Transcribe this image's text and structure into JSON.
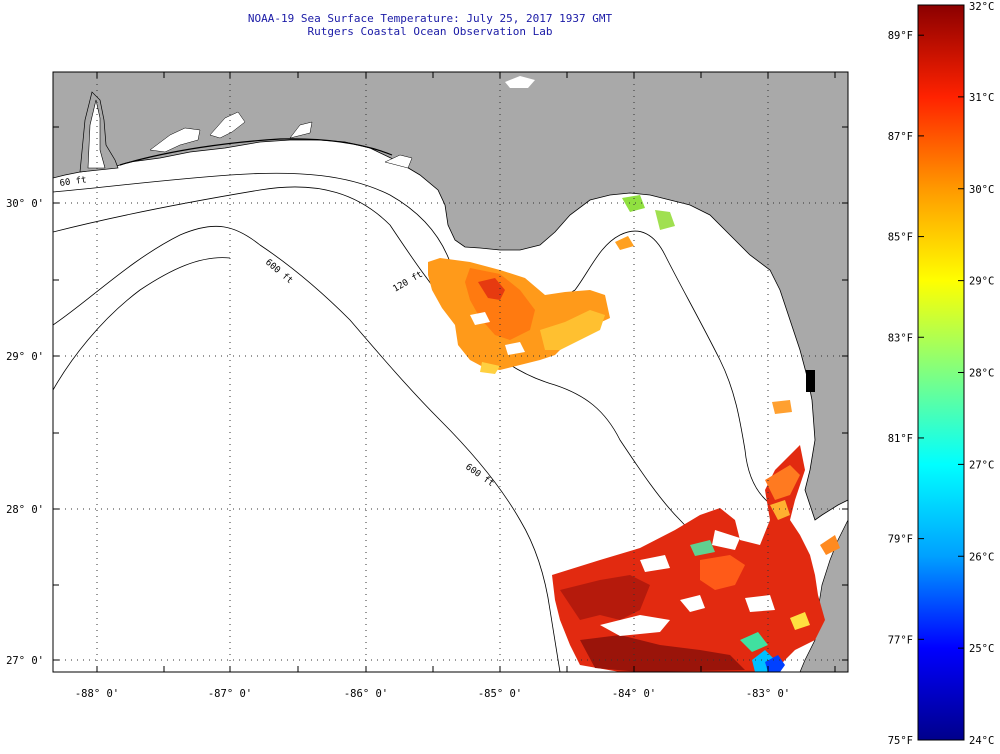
{
  "header": {
    "title": "NOAA-19 Sea Surface Temperature:  July 25, 2017 1937 GMT",
    "subtitle": "Rutgers Coastal Ocean Observation Lab"
  },
  "map": {
    "lon_labels": [
      "-88° 0'",
      "-87° 0'",
      "-86° 0'",
      "-85° 0'",
      "-84° 0'",
      "-83° 0'"
    ],
    "lat_labels": [
      "30° 0'",
      "29° 0'",
      "28° 0'",
      "27° 0'"
    ],
    "contours": [
      {
        "label": "60 ft"
      },
      {
        "label": "120 ft"
      },
      {
        "label": "600 ft"
      },
      {
        "label": "600 ft"
      }
    ],
    "colors": {
      "land": "#a9a9a9",
      "water": "#ffffff",
      "grid": "#333333"
    }
  },
  "colorbar": {
    "range_c": [
      24,
      32
    ],
    "range_f": [
      75,
      89.6
    ],
    "celsius_labels": [
      "32°C",
      "31°C",
      "30°C",
      "29°C",
      "28°C",
      "27°C",
      "26°C",
      "25°C",
      "24°C"
    ],
    "fahrenheit_labels": [
      "89°F",
      "87°F",
      "85°F",
      "83°F",
      "81°F",
      "79°F",
      "77°F",
      "75°F"
    ],
    "fahrenheit_values": [
      89,
      87,
      85,
      83,
      81,
      79,
      77,
      75
    ],
    "stops": [
      "#00008b",
      "#0000ff",
      "#00a0ff",
      "#00ffff",
      "#80ff80",
      "#ffff00",
      "#ff9900",
      "#ff2200",
      "#8b0000"
    ]
  }
}
